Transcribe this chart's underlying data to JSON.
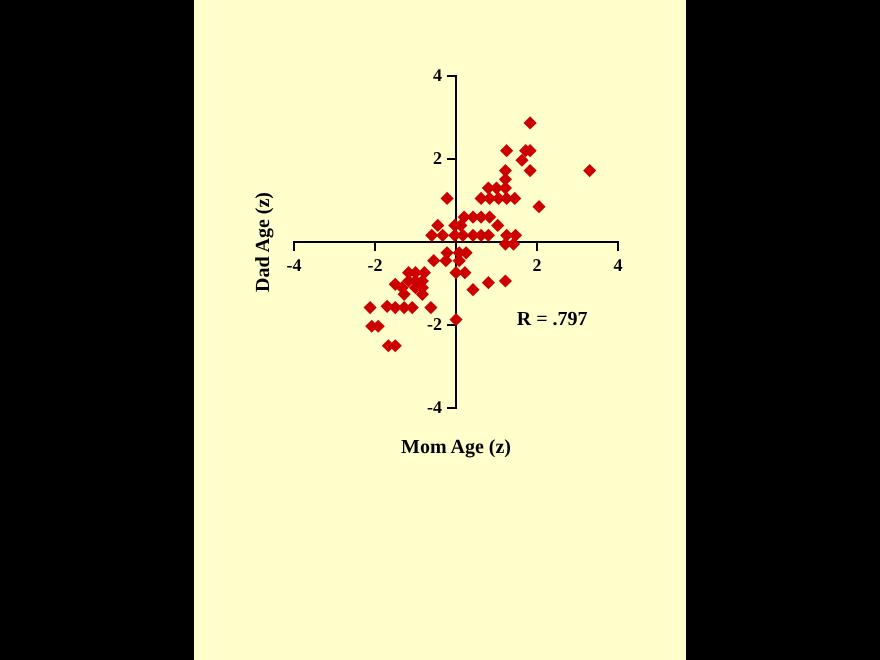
{
  "chart_data": {
    "type": "scatter",
    "xlabel": "Mom Age (z)",
    "ylabel": "Dad Age (z)",
    "annotations": [
      "R = .797"
    ],
    "xlim": [
      -4,
      4
    ],
    "ylim": [
      -4,
      4
    ],
    "xticks": [
      -4,
      -2,
      2,
      4
    ],
    "yticks": [
      -4,
      -2,
      2,
      4
    ],
    "grid": false,
    "legend": false,
    "marker": "diamond",
    "series": [
      {
        "color": "#cc0000",
        "x": [
          1.83,
          1.25,
          1.72,
          1.83,
          1.63,
          1.22,
          1.22,
          1.83,
          3.3,
          0.8,
          1.0,
          1.22,
          -0.22,
          0.62,
          0.83,
          1.05,
          1.25,
          1.45,
          2.05,
          0.2,
          0.42,
          0.62,
          0.83,
          -0.45,
          -0.03,
          0.12,
          1.03,
          -0.6,
          -0.33,
          -0.03,
          0.17,
          0.42,
          0.62,
          0.8,
          1.25,
          1.47,
          1.22,
          1.42,
          -0.22,
          0.08,
          0.25,
          -0.55,
          -0.25,
          0.08,
          -1.17,
          -1.0,
          -0.78,
          0,
          0.22,
          -1.17,
          -1.0,
          -0.83,
          1.22,
          0.8,
          -1.5,
          -1.33,
          -1.0,
          -0.83,
          0.42,
          -1.28,
          -0.83,
          -2.12,
          -1.7,
          -1.5,
          -1.28,
          -1.08,
          -0.62,
          0,
          -2.08,
          -1.92,
          -1.67,
          -1.5
        ],
        "values": [
          2.87,
          2.2,
          2.2,
          2.2,
          1.97,
          1.72,
          1.51,
          1.72,
          1.72,
          1.3,
          1.3,
          1.3,
          1.05,
          1.05,
          1.05,
          1.05,
          1.05,
          1.05,
          0.85,
          0.6,
          0.6,
          0.6,
          0.6,
          0.4,
          0.4,
          0.4,
          0.4,
          0.16,
          0.16,
          0.16,
          0.16,
          0.16,
          0.16,
          0.16,
          0.16,
          0.16,
          -0.05,
          -0.05,
          -0.26,
          -0.26,
          -0.26,
          -0.45,
          -0.45,
          -0.45,
          -0.74,
          -0.74,
          -0.74,
          -0.74,
          -0.74,
          -0.94,
          -0.94,
          -0.94,
          -0.94,
          -0.98,
          -1.02,
          -1.1,
          -1.1,
          -1.1,
          -1.15,
          -1.26,
          -1.26,
          -1.58,
          -1.55,
          -1.58,
          -1.58,
          -1.58,
          -1.58,
          -1.87,
          -2.03,
          -2.03,
          -2.5,
          -2.5
        ]
      }
    ]
  }
}
